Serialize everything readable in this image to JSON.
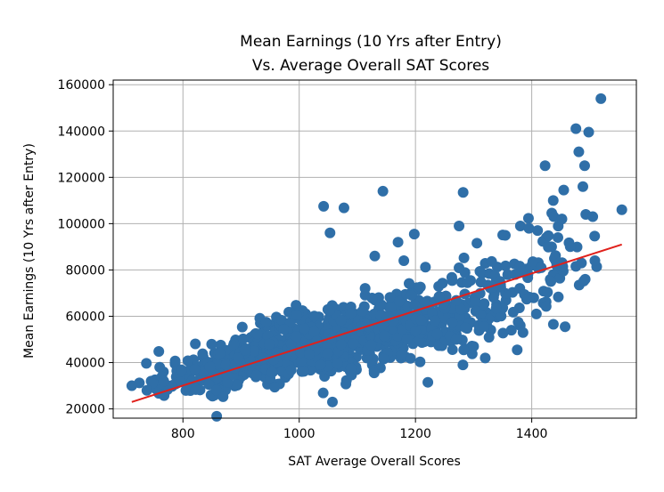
{
  "chart_data": {
    "type": "scatter",
    "title_line1": "Mean Earnings (10 Yrs after Entry)",
    "title_line2": "Vs. Average Overall SAT Scores",
    "xlabel": "SAT Average Overall Scores",
    "ylabel": "Mean Earnings (10 Yrs after Entry)",
    "xlim": [
      680,
      1580
    ],
    "ylim": [
      16000,
      162000
    ],
    "xticks": [
      800,
      1000,
      1200,
      1400
    ],
    "yticks": [
      20000,
      40000,
      60000,
      80000,
      100000,
      120000,
      140000,
      160000
    ],
    "grid": true,
    "point_color": "#2f6fa8",
    "line_color": "#e0201b",
    "regression": {
      "x": [
        712,
        1555
      ],
      "y": [
        23000,
        91000
      ]
    },
    "outliers": [
      {
        "x": 1519,
        "y": 154000
      },
      {
        "x": 1476,
        "y": 141000
      },
      {
        "x": 1498,
        "y": 139500
      },
      {
        "x": 1481,
        "y": 131000
      },
      {
        "x": 1491,
        "y": 125000
      },
      {
        "x": 1423,
        "y": 125000
      },
      {
        "x": 1488,
        "y": 116000
      },
      {
        "x": 1455,
        "y": 114500
      },
      {
        "x": 1144,
        "y": 114000
      },
      {
        "x": 1282,
        "y": 113500
      },
      {
        "x": 1437,
        "y": 110000
      },
      {
        "x": 1042,
        "y": 107500
      },
      {
        "x": 1077,
        "y": 106800
      },
      {
        "x": 1555,
        "y": 106000
      },
      {
        "x": 1438,
        "y": 103000
      },
      {
        "x": 1452,
        "y": 102000
      },
      {
        "x": 1493,
        "y": 104000
      },
      {
        "x": 1505,
        "y": 103000
      },
      {
        "x": 1275,
        "y": 99000
      },
      {
        "x": 1198,
        "y": 95500
      },
      {
        "x": 1053,
        "y": 96000
      },
      {
        "x": 1170,
        "y": 92000
      },
      {
        "x": 1130,
        "y": 86000
      },
      {
        "x": 1180,
        "y": 84000
      },
      {
        "x": 1320,
        "y": 42000
      },
      {
        "x": 1375,
        "y": 45500
      },
      {
        "x": 1283,
        "y": 45500
      },
      {
        "x": 712,
        "y": 30000
      },
      {
        "x": 738,
        "y": 28000
      },
      {
        "x": 760,
        "y": 38000
      },
      {
        "x": 1408,
        "y": 61000
      },
      {
        "x": 1365,
        "y": 54000
      },
      {
        "x": 1385,
        "y": 53000
      },
      {
        "x": 1300,
        "y": 47000
      },
      {
        "x": 1270,
        "y": 50000
      },
      {
        "x": 1447,
        "y": 83000
      }
    ],
    "clusters": [
      {
        "x": 760,
        "y": 30000,
        "sx": 25,
        "sy": 2500,
        "n": 18
      },
      {
        "x": 840,
        "y": 34000,
        "sx": 40,
        "sy": 5000,
        "n": 70
      },
      {
        "x": 920,
        "y": 42000,
        "sx": 40,
        "sy": 6000,
        "n": 160
      },
      {
        "x": 1000,
        "y": 47000,
        "sx": 45,
        "sy": 7000,
        "n": 220
      },
      {
        "x": 1080,
        "y": 50000,
        "sx": 45,
        "sy": 7000,
        "n": 200
      },
      {
        "x": 1160,
        "y": 54000,
        "sx": 45,
        "sy": 7500,
        "n": 130
      },
      {
        "x": 1240,
        "y": 60000,
        "sx": 45,
        "sy": 8000,
        "n": 90
      },
      {
        "x": 1320,
        "y": 68000,
        "sx": 45,
        "sy": 10000,
        "n": 70
      },
      {
        "x": 1400,
        "y": 78000,
        "sx": 40,
        "sy": 12000,
        "n": 45
      },
      {
        "x": 1470,
        "y": 88000,
        "sx": 30,
        "sy": 8000,
        "n": 20
      }
    ]
  }
}
